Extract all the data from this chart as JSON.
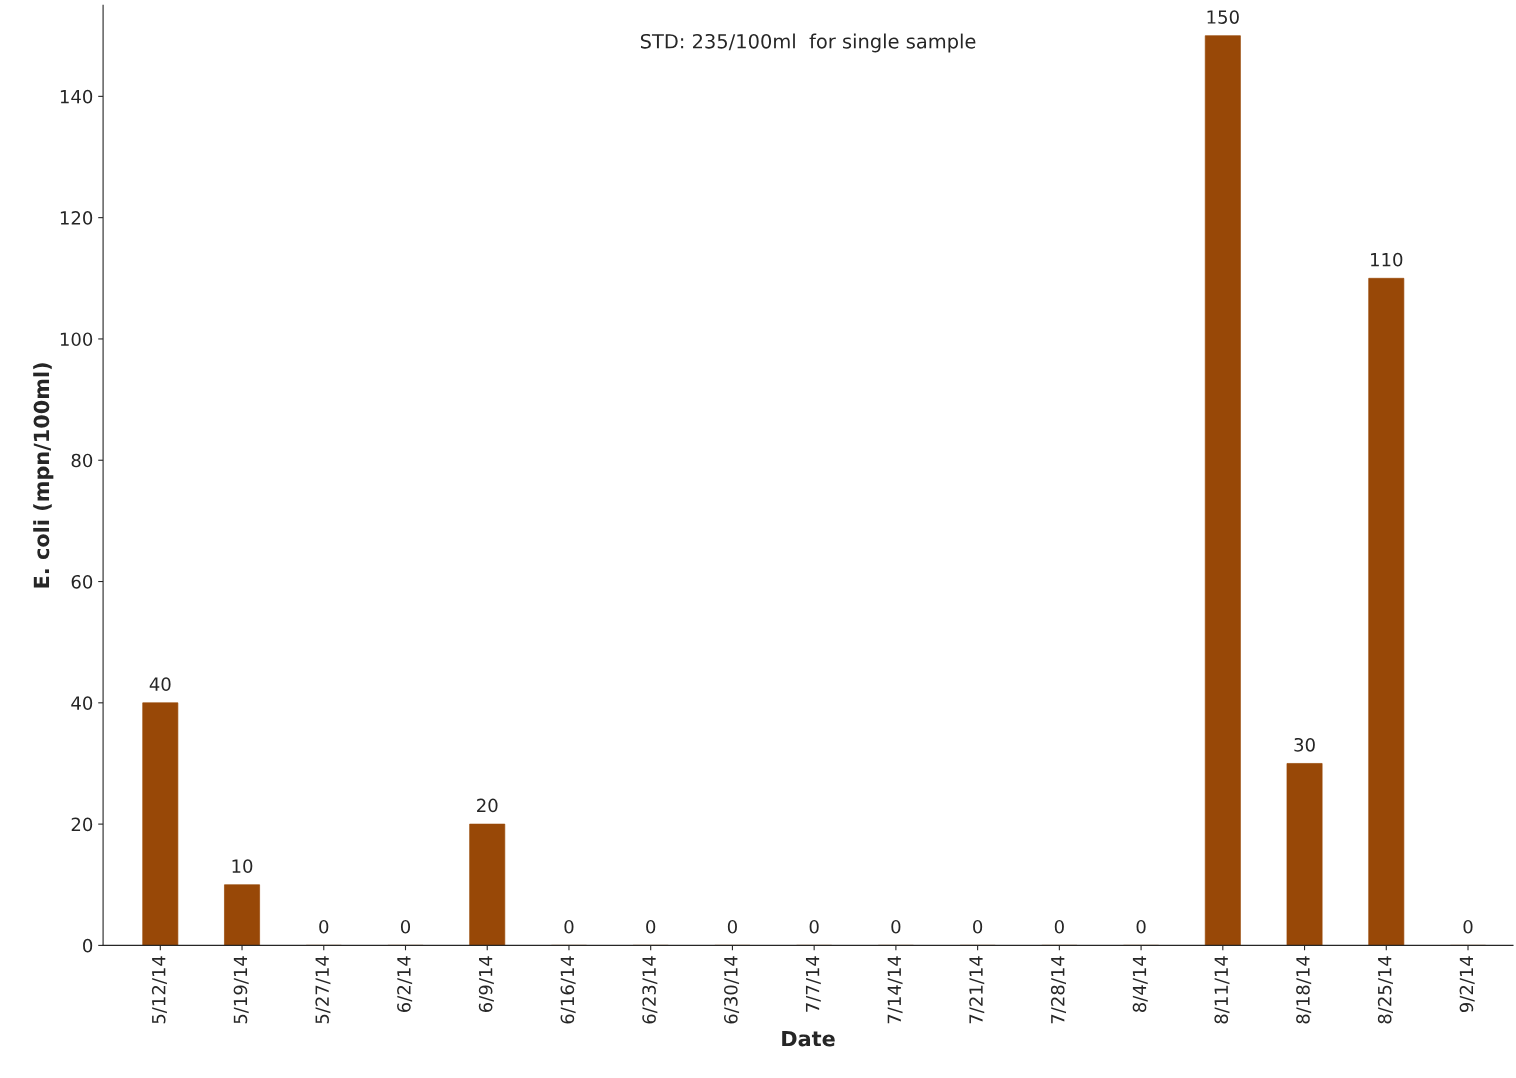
{
  "chart_data": {
    "type": "bar",
    "categories": [
      "5/12/14",
      "5/19/14",
      "5/27/14",
      "6/2/14",
      "6/9/14",
      "6/16/14",
      "6/23/14",
      "6/30/14",
      "7/7/14",
      "7/14/14",
      "7/21/14",
      "7/28/14",
      "8/4/14",
      "8/11/14",
      "8/18/14",
      "8/25/14",
      "9/2/14"
    ],
    "values": [
      40,
      10,
      0,
      0,
      20,
      0,
      0,
      0,
      0,
      0,
      0,
      0,
      0,
      150,
      30,
      110,
      0
    ],
    "color": "#984807",
    "xlabel": "Date",
    "ylabel": "E. coli (mpn/100ml)",
    "ylim": [
      0,
      155
    ],
    "yticks": [
      0,
      20,
      40,
      60,
      80,
      100,
      120,
      140
    ],
    "annotations": [
      "STD: 235/100ml  for single sample"
    ],
    "data_labels": true,
    "grid": false,
    "legend": false
  }
}
